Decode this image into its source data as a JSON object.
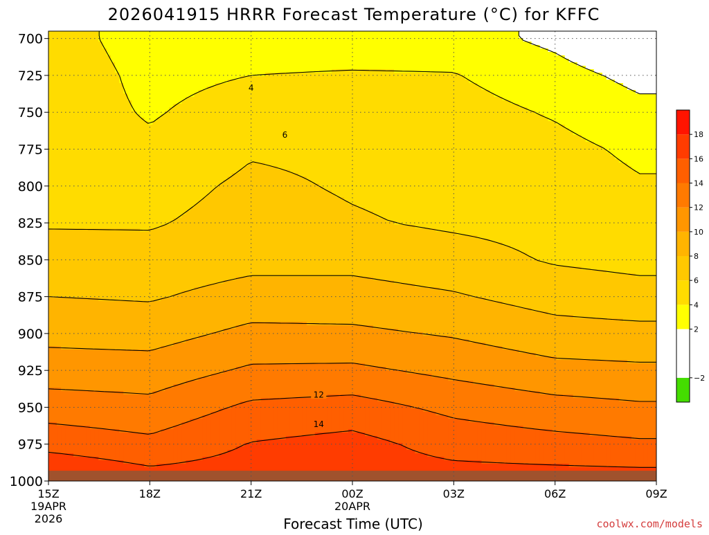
{
  "chart_data": {
    "type": "contour",
    "title": "2026041915 HRRR Forecast Temperature (°C) for KFFC",
    "xlabel": "Forecast Time (UTC)",
    "ylabel": "",
    "x_ticks": [
      {
        "hour": 0,
        "label": "15Z",
        "sub1": "19APR",
        "sub2": "2026"
      },
      {
        "hour": 3,
        "label": "18Z",
        "sub1": "",
        "sub2": ""
      },
      {
        "hour": 6,
        "label": "21Z",
        "sub1": "",
        "sub2": ""
      },
      {
        "hour": 9,
        "label": "00Z",
        "sub1": "20APR",
        "sub2": ""
      },
      {
        "hour": 12,
        "label": "03Z",
        "sub1": "",
        "sub2": ""
      },
      {
        "hour": 15,
        "label": "06Z",
        "sub1": "",
        "sub2": ""
      },
      {
        "hour": 18,
        "label": "09Z",
        "sub1": "",
        "sub2": ""
      }
    ],
    "y_ticks": [
      700,
      725,
      750,
      775,
      800,
      825,
      850,
      875,
      900,
      925,
      950,
      975,
      1000
    ],
    "xlim_hours": [
      0,
      18
    ],
    "ylim_hpa": [
      1000,
      695
    ],
    "grid": true,
    "surface_pressure_hpa": 993,
    "contour_labels": [
      {
        "text": "4",
        "hour": 6.0,
        "p": 733
      },
      {
        "text": "6",
        "hour": 7.0,
        "p": 765
      },
      {
        "text": "12",
        "hour": 8.0,
        "p": 941
      },
      {
        "text": "14",
        "hour": 8.0,
        "p": 961
      }
    ],
    "profiles": [
      {
        "hour": 0,
        "p": [
          1000,
          975,
          950,
          925,
          900,
          875,
          850,
          825,
          800,
          775,
          750,
          725,
          700
        ],
        "t": [
          18.5,
          15.3,
          13.0,
          11.0,
          9.4,
          8.0,
          7.0,
          5.8,
          5.0,
          4.8,
          5.2,
          5.4,
          5.0
        ]
      },
      {
        "hour": 3,
        "p": [
          1000,
          975,
          950,
          925,
          900,
          875,
          850,
          825,
          800,
          775,
          750,
          725,
          700
        ],
        "t": [
          17.0,
          14.5,
          12.6,
          10.9,
          9.2,
          7.8,
          6.8,
          5.8,
          5.2,
          4.4,
          3.8,
          3.4,
          3.0
        ]
      },
      {
        "hour": 6,
        "p": [
          1000,
          975,
          950,
          925,
          900,
          875,
          850,
          825,
          800,
          775,
          750,
          725,
          700
        ],
        "t": [
          17.0,
          16.1,
          14.4,
          12.3,
          10.5,
          8.8,
          7.4,
          6.8,
          6.4,
          5.8,
          5.0,
          4.0,
          3.0
        ]
      },
      {
        "hour": 9,
        "p": [
          1000,
          975,
          950,
          925,
          900,
          875,
          850,
          825,
          800,
          775,
          750,
          725,
          700
        ],
        "t": [
          17.0,
          16.7,
          14.8,
          12.4,
          10.4,
          8.8,
          7.4,
          6.2,
          5.8,
          5.6,
          5.0,
          4.2,
          2.8
        ]
      },
      {
        "hour": 12,
        "p": [
          1000,
          975,
          950,
          925,
          900,
          875,
          850,
          825,
          800,
          775,
          750,
          725,
          700
        ],
        "t": [
          17.0,
          15.2,
          13.5,
          11.5,
          9.8,
          8.2,
          6.8,
          5.7,
          5.4,
          5.2,
          4.8,
          4.1,
          2.9
        ]
      },
      {
        "hour": 15,
        "p": [
          1000,
          975,
          950,
          925,
          900,
          875,
          850,
          825,
          800,
          775,
          750,
          725,
          700
        ],
        "t": [
          17.0,
          14.7,
          12.7,
          10.6,
          8.8,
          7.2,
          5.8,
          5.4,
          5.0,
          4.6,
          3.8,
          2.8,
          1.5
        ]
      },
      {
        "hour": 17.5,
        "p": [
          1000,
          975,
          950,
          925,
          900,
          875,
          850,
          825,
          800,
          775,
          750,
          725,
          700
        ],
        "t": [
          17.0,
          14.3,
          12.3,
          10.4,
          8.6,
          6.8,
          5.4,
          4.8,
          4.2,
          3.6,
          2.6,
          1.4,
          -0.5
        ]
      }
    ],
    "colorbar": {
      "bins": [
        {
          "lo": -4,
          "hi": -2,
          "color": "#44dd00"
        },
        {
          "lo": -2,
          "hi": 2,
          "color": "#ffffff"
        },
        {
          "lo": 2,
          "hi": 4,
          "color": "#ffff00"
        },
        {
          "lo": 4,
          "hi": 6,
          "color": "#ffdc00"
        },
        {
          "lo": 6,
          "hi": 8,
          "color": "#ffc800"
        },
        {
          "lo": 8,
          "hi": 10,
          "color": "#ffb400"
        },
        {
          "lo": 10,
          "hi": 12,
          "color": "#ff9600"
        },
        {
          "lo": 12,
          "hi": 14,
          "color": "#ff7a00"
        },
        {
          "lo": 14,
          "hi": 16,
          "color": "#ff5f00"
        },
        {
          "lo": 16,
          "hi": 18,
          "color": "#ff3c00"
        },
        {
          "lo": 18,
          "hi": 20,
          "color": "#ff1400"
        }
      ],
      "tick_labels": [
        {
          "value": -2,
          "label": "−2"
        },
        {
          "value": 2,
          "label": "2"
        },
        {
          "value": 4,
          "label": "4"
        },
        {
          "value": 6,
          "label": "6"
        },
        {
          "value": 8,
          "label": "8"
        },
        {
          "value": 10,
          "label": "10"
        },
        {
          "value": 12,
          "label": "12"
        },
        {
          "value": 14,
          "label": "14"
        },
        {
          "value": 16,
          "label": "16"
        },
        {
          "value": 18,
          "label": "18"
        }
      ]
    },
    "colors": {
      "terrain": "#a0522d",
      "freezing_line": "#b4005a",
      "contour": "#000000",
      "grid": "#555555"
    }
  },
  "footer": {
    "credit": "coolwx.com/models"
  }
}
